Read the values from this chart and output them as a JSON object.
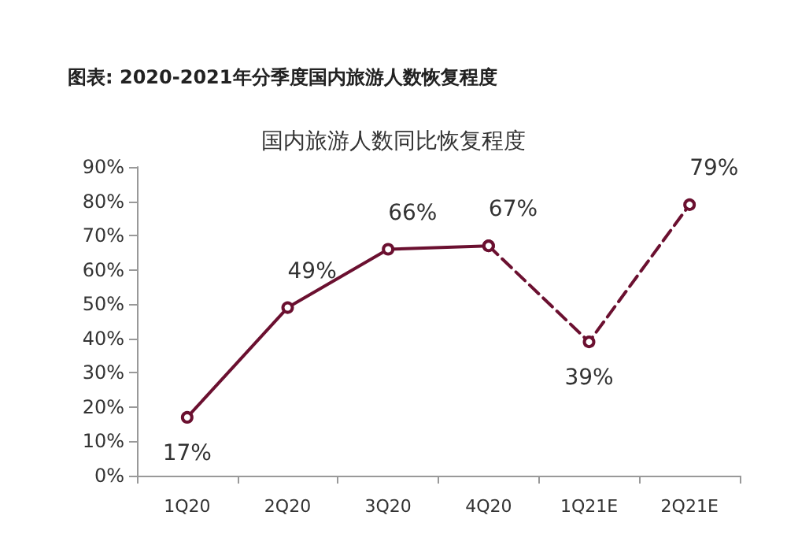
{
  "chart_data": {
    "type": "line",
    "title": "图表: 2020-2021年分季度国内旅游人数恢复程度",
    "subtitle": "国内旅游人数同比恢复程度",
    "categories": [
      "1Q20",
      "2Q20",
      "3Q20",
      "4Q20",
      "1Q21E",
      "2Q21E"
    ],
    "series": [
      {
        "color": "#6b1030",
        "line_style": "solid",
        "values": [
          17,
          49,
          66,
          67,
          null,
          null
        ],
        "value_labels": [
          "17%",
          "49%",
          "66%",
          "67%",
          null,
          null
        ]
      },
      {
        "color": "#6b1030",
        "line_style": "dashed",
        "values": [
          null,
          null,
          null,
          67,
          39,
          79
        ],
        "value_labels": [
          null,
          null,
          null,
          null,
          "39%",
          "79%"
        ]
      }
    ],
    "ylim": [
      0,
      90
    ],
    "yticks": [
      {
        "value": 0,
        "label": "0%"
      },
      {
        "value": 10,
        "label": "10%"
      },
      {
        "value": 20,
        "label": "20%"
      },
      {
        "value": 30,
        "label": "30%"
      },
      {
        "value": 40,
        "label": "40%"
      },
      {
        "value": 50,
        "label": "50%"
      },
      {
        "value": 60,
        "label": "60%"
      },
      {
        "value": 70,
        "label": "70%"
      },
      {
        "value": 80,
        "label": "80%"
      },
      {
        "value": 90,
        "label": "90%"
      }
    ],
    "grid": false,
    "marker": "circle"
  }
}
